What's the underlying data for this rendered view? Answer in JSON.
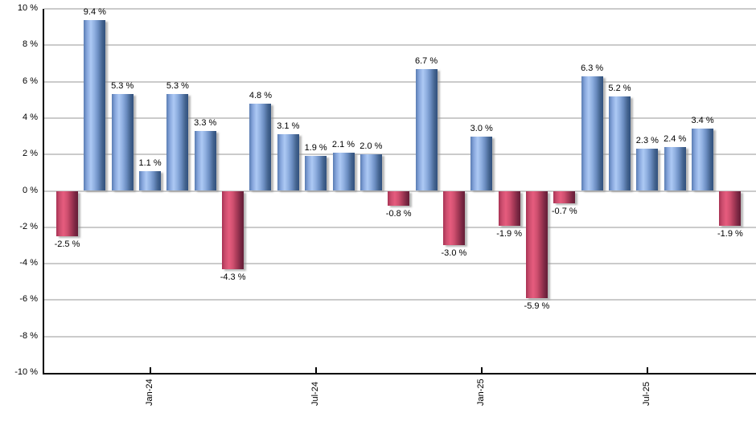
{
  "chart_data": {
    "type": "bar",
    "title": "",
    "unit": "%",
    "values": [
      -2.5,
      9.4,
      5.3,
      1.1,
      5.3,
      3.3,
      -4.3,
      4.8,
      3.1,
      1.9,
      2.1,
      2.0,
      -0.8,
      6.7,
      -3.0,
      3.0,
      -1.9,
      -5.9,
      -0.7,
      6.3,
      5.2,
      2.3,
      2.4,
      3.4,
      -1.9
    ],
    "bar_labels": [
      "-2.5 %",
      "9.4 %",
      "5.3 %",
      "1.1 %",
      "5.3 %",
      "3.3 %",
      "-4.3 %",
      "4.8 %",
      "3.1 %",
      "1.9 %",
      "2.1 %",
      "2.0 %",
      "-0.8 %",
      "6.7 %",
      "-3.0 %",
      "3.0 %",
      "-1.9 %",
      "-5.9 %",
      "-0.7 %",
      "6.3 %",
      "5.2 %",
      "2.3 %",
      "2.4 %",
      "3.4 %",
      "-1.9 %"
    ],
    "x_tick_labels": [
      {
        "index": 3,
        "label": "Jan-24"
      },
      {
        "index": 9,
        "label": "Jul-24"
      },
      {
        "index": 15,
        "label": "Jan-25"
      },
      {
        "index": 21,
        "label": "Jul-25"
      }
    ],
    "y_tick_labels": [
      "10 %",
      "8 %",
      "6 %",
      "4 %",
      "2 %",
      "0 %",
      "-2 %",
      "-4 %",
      "-6 %",
      "-8 %",
      "-10 %"
    ],
    "ylim": [
      -10,
      10
    ],
    "y_step": 2,
    "grid": true,
    "legend_position": "none"
  },
  "colors": {
    "background": "#ffffff",
    "gridline": "#cbcbcb",
    "axis": "#000000",
    "label_text": "#000000",
    "positive_bar": "#89a9de",
    "negative_bar": "#cf4f6f"
  }
}
